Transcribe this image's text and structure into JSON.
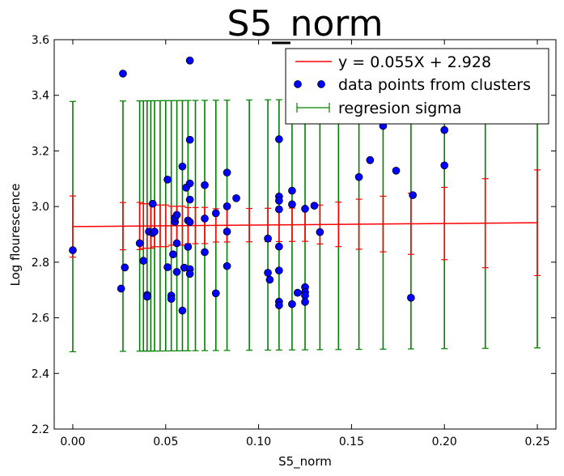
{
  "chart_data": {
    "type": "scatter",
    "title": "S5_norm",
    "xlabel": "S5_norm",
    "ylabel": "Log flourescence",
    "xlim": [
      -0.01,
      0.26
    ],
    "ylim": [
      2.2,
      3.6
    ],
    "x_ticks": [
      "0.00",
      "0.05",
      "0.10",
      "0.15",
      "0.20",
      "0.25"
    ],
    "y_ticks": [
      "2.2",
      "2.4",
      "2.6",
      "2.8",
      "3.0",
      "3.2",
      "3.4",
      "3.6"
    ],
    "legend_position": "top-right",
    "colors": {
      "regression": "#ff0000",
      "points": "#0000ff",
      "sigma": "#008000"
    },
    "legend": {
      "regression_label": "y = 0.055X + 2.928",
      "points_label": "data points from clusters",
      "sigma_label": "regresion sigma"
    },
    "regression": {
      "slope": 0.055,
      "intercept": 2.928,
      "x_range": [
        0.0,
        0.25
      ]
    },
    "series": [
      {
        "name": "data points from clusters",
        "points": [
          [
            0.0,
            2.843
          ],
          [
            0.026,
            2.705
          ],
          [
            0.027,
            3.478
          ],
          [
            0.028,
            2.781
          ],
          [
            0.036,
            2.868
          ],
          [
            0.038,
            2.805
          ],
          [
            0.04,
            2.682
          ],
          [
            0.04,
            2.676
          ],
          [
            0.041,
            2.91
          ],
          [
            0.043,
            2.905
          ],
          [
            0.043,
            3.01
          ],
          [
            0.044,
            2.91
          ],
          [
            0.051,
            3.097
          ],
          [
            0.051,
            2.782
          ],
          [
            0.053,
            2.68
          ],
          [
            0.053,
            2.668
          ],
          [
            0.054,
            2.828
          ],
          [
            0.055,
            2.945
          ],
          [
            0.055,
            2.96
          ],
          [
            0.056,
            2.97
          ],
          [
            0.056,
            2.868
          ],
          [
            0.056,
            2.765
          ],
          [
            0.059,
            3.144
          ],
          [
            0.059,
            2.626
          ],
          [
            0.06,
            2.78
          ],
          [
            0.061,
            3.068
          ],
          [
            0.062,
            2.855
          ],
          [
            0.062,
            2.95
          ],
          [
            0.063,
            3.24
          ],
          [
            0.063,
            3.525
          ],
          [
            0.063,
            3.083
          ],
          [
            0.063,
            3.025
          ],
          [
            0.063,
            2.944
          ],
          [
            0.063,
            2.775
          ],
          [
            0.063,
            2.758
          ],
          [
            0.071,
            3.077
          ],
          [
            0.071,
            2.957
          ],
          [
            0.071,
            2.836
          ],
          [
            0.077,
            2.976
          ],
          [
            0.077,
            2.688
          ],
          [
            0.083,
            3.122
          ],
          [
            0.083,
            3.001
          ],
          [
            0.083,
            2.91
          ],
          [
            0.083,
            2.786
          ],
          [
            0.088,
            3.03
          ],
          [
            0.105,
            2.885
          ],
          [
            0.105,
            2.762
          ],
          [
            0.106,
            2.737
          ],
          [
            0.111,
            3.242
          ],
          [
            0.111,
            3.036
          ],
          [
            0.111,
            3.021
          ],
          [
            0.111,
            2.99
          ],
          [
            0.111,
            2.856
          ],
          [
            0.111,
            2.77
          ],
          [
            0.111,
            2.658
          ],
          [
            0.111,
            2.645
          ],
          [
            0.118,
            3.057
          ],
          [
            0.118,
            3.008
          ],
          [
            0.118,
            2.649
          ],
          [
            0.121,
            2.69
          ],
          [
            0.125,
            2.992
          ],
          [
            0.125,
            2.71
          ],
          [
            0.125,
            2.692
          ],
          [
            0.125,
            2.68
          ],
          [
            0.125,
            2.657
          ],
          [
            0.13,
            3.003
          ],
          [
            0.133,
            2.908
          ],
          [
            0.154,
            3.106
          ],
          [
            0.16,
            3.167
          ],
          [
            0.167,
            3.29
          ],
          [
            0.174,
            3.129
          ],
          [
            0.182,
            2.672
          ],
          [
            0.183,
            3.041
          ],
          [
            0.2,
            3.275
          ],
          [
            0.2,
            3.148
          ]
        ]
      }
    ],
    "sigma_bars": [
      {
        "x": 0.0,
        "green": 0.45,
        "red": 0.11
      },
      {
        "x": 0.027,
        "green": 0.45,
        "red": 0.085
      },
      {
        "x": 0.036,
        "green": 0.45,
        "red": 0.085
      },
      {
        "x": 0.038,
        "green": 0.45,
        "red": 0.08
      },
      {
        "x": 0.04,
        "green": 0.45,
        "red": 0.08
      },
      {
        "x": 0.042,
        "green": 0.45,
        "red": 0.08
      },
      {
        "x": 0.044,
        "green": 0.45,
        "red": 0.075
      },
      {
        "x": 0.047,
        "green": 0.45,
        "red": 0.075
      },
      {
        "x": 0.05,
        "green": 0.45,
        "red": 0.075
      },
      {
        "x": 0.053,
        "green": 0.45,
        "red": 0.07
      },
      {
        "x": 0.056,
        "green": 0.45,
        "red": 0.07
      },
      {
        "x": 0.059,
        "green": 0.45,
        "red": 0.07
      },
      {
        "x": 0.062,
        "green": 0.45,
        "red": 0.065
      },
      {
        "x": 0.066,
        "green": 0.45,
        "red": 0.065
      },
      {
        "x": 0.071,
        "green": 0.45,
        "red": 0.065
      },
      {
        "x": 0.077,
        "green": 0.45,
        "red": 0.06
      },
      {
        "x": 0.083,
        "green": 0.45,
        "red": 0.06
      },
      {
        "x": 0.095,
        "green": 0.45,
        "red": 0.06
      },
      {
        "x": 0.105,
        "green": 0.45,
        "red": 0.06
      },
      {
        "x": 0.111,
        "green": 0.45,
        "red": 0.06
      },
      {
        "x": 0.118,
        "green": 0.45,
        "red": 0.06
      },
      {
        "x": 0.125,
        "green": 0.45,
        "red": 0.06
      },
      {
        "x": 0.133,
        "green": 0.45,
        "red": 0.07
      },
      {
        "x": 0.143,
        "green": 0.45,
        "red": 0.08
      },
      {
        "x": 0.154,
        "green": 0.45,
        "red": 0.09
      },
      {
        "x": 0.167,
        "green": 0.45,
        "red": 0.1
      },
      {
        "x": 0.182,
        "green": 0.45,
        "red": 0.11
      },
      {
        "x": 0.2,
        "green": 0.45,
        "red": 0.13
      },
      {
        "x": 0.222,
        "green": 0.45,
        "red": 0.16
      },
      {
        "x": 0.25,
        "green": 0.45,
        "red": 0.19
      }
    ]
  }
}
